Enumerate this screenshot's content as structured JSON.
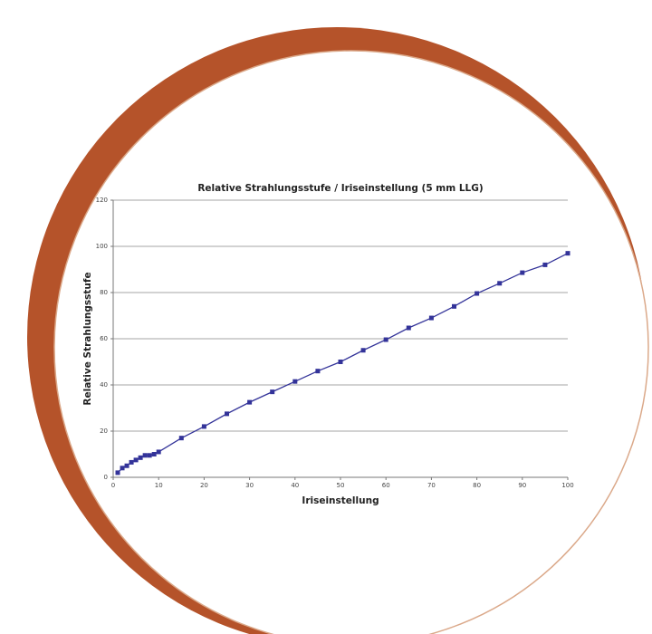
{
  "chart_data": {
    "type": "line",
    "title": "Relative Strahlungsstufe / Iriseinstellung (5 mm LLG)",
    "x_label": "Iriseinstellung",
    "y_label": "Relative Strahlungsstufe",
    "x": [
      1,
      2,
      3,
      4,
      5,
      6,
      7,
      8,
      9,
      10,
      15,
      20,
      25,
      30,
      35,
      40,
      45,
      50,
      55,
      60,
      65,
      70,
      75,
      80,
      85,
      90,
      95,
      100
    ],
    "series": [
      {
        "name": "Relative Strahlungsstufe",
        "color": "#333399",
        "values": [
          2,
          4,
          5,
          6.5,
          7.5,
          8.5,
          9.5,
          9.5,
          10,
          11,
          17,
          22,
          27.5,
          32.5,
          37,
          41.5,
          46,
          50,
          55,
          59.6,
          64.7,
          69,
          74,
          79.6,
          84,
          88.6,
          92,
          97
        ]
      }
    ],
    "xlim": [
      0,
      100
    ],
    "xticks": [
      0,
      10,
      20,
      30,
      40,
      50,
      60,
      70,
      80,
      90,
      100
    ],
    "ylim": [
      0,
      120
    ],
    "yticks": [
      0,
      20,
      40,
      60,
      80,
      100,
      120
    ],
    "grid": true
  }
}
